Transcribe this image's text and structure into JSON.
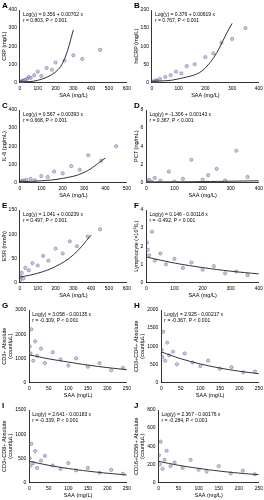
{
  "chart_data": [
    {
      "type": "scatter",
      "title": "A",
      "x_label": "SAA (mg/L)",
      "y_label": "CRP (mg/L)",
      "annotations": [
        "Log(y) = 0.356 + 0.00702 x",
        "r = 0.803, P < 0.001"
      ],
      "xlim": [
        0,
        600
      ],
      "xticks": [
        0,
        100,
        200,
        300,
        400,
        500,
        600
      ],
      "ylim": [
        0,
        400
      ],
      "yticks": [
        0,
        100,
        200,
        300,
        400
      ],
      "grid": false,
      "color": "#7e6aa8",
      "marker": "circle",
      "x": [
        2,
        5,
        8,
        10,
        15,
        20,
        30,
        40,
        50,
        60,
        80,
        100,
        120,
        150,
        180,
        200,
        250,
        300,
        350,
        450
      ],
      "values": [
        1,
        3,
        5,
        2,
        10,
        8,
        15,
        20,
        30,
        25,
        40,
        60,
        35,
        80,
        70,
        110,
        120,
        150,
        130,
        180
      ],
      "fit": {
        "x": [
          0,
          100,
          200,
          250,
          300
        ],
        "values": [
          2.3,
          11.5,
          58,
          129,
          290
        ],
        "color": "#333333",
        "line_style": "solid"
      }
    },
    {
      "type": "scatter",
      "title": "B",
      "x_label": "SAA (mg/L)",
      "y_label": "hsCRP (mg/L)",
      "annotations": [
        "Log(y) = 0.376 + 0.00619 x",
        "r = 0.767, P < 0.001"
      ],
      "xlim": [
        0,
        400
      ],
      "xticks": [
        0,
        100,
        200,
        300,
        400
      ],
      "ylim": [
        0,
        200
      ],
      "yticks": [
        0,
        50,
        100,
        150,
        200
      ],
      "grid": false,
      "color": "#7e6aa8",
      "marker": "circle",
      "x": [
        2,
        5,
        10,
        15,
        20,
        30,
        50,
        70,
        90,
        110,
        130,
        160,
        200,
        230,
        260,
        300,
        350
      ],
      "values": [
        1,
        3,
        2,
        6,
        5,
        10,
        15,
        20,
        30,
        25,
        45,
        50,
        70,
        80,
        110,
        120,
        150
      ],
      "fit": {
        "x": [
          0,
          100,
          200,
          300
        ],
        "values": [
          2.4,
          9.8,
          40,
          163
        ],
        "color": "#333333",
        "line_style": "solid"
      }
    },
    {
      "type": "scatter",
      "title": "C",
      "x_label": "SAA (mg/L)",
      "y_label": "IL-6 (pg/mL)",
      "annotations": [
        "Log(y) = 0.567 + 0.00393 x",
        "r = 0.668, P < 0.001"
      ],
      "xlim": [
        0,
        500
      ],
      "xticks": [
        0,
        100,
        200,
        300,
        400,
        500
      ],
      "ylim": [
        0,
        400
      ],
      "yticks": [
        0,
        100,
        200,
        300,
        400
      ],
      "grid": false,
      "color": "#7e6aa8",
      "marker": "circle",
      "x": [
        3,
        8,
        12,
        20,
        30,
        50,
        70,
        100,
        130,
        160,
        200,
        240,
        280,
        320,
        380,
        450
      ],
      "values": [
        5,
        2,
        10,
        8,
        15,
        20,
        12,
        35,
        30,
        60,
        50,
        90,
        70,
        150,
        120,
        200
      ],
      "fit": {
        "x": [
          0,
          100,
          200,
          300,
          400
        ],
        "values": [
          3.7,
          9.1,
          22.2,
          55,
          135
        ],
        "color": "#333333",
        "line_style": "solid"
      }
    },
    {
      "type": "scatter",
      "title": "D",
      "x_label": "SAA (mg/L)",
      "y_label": "PCT (ng/mL)",
      "annotations": [
        "Log(y) = -1.306 + 0.00143 x",
        "r = 0.367, P < 0.001"
      ],
      "xlim": [
        0,
        400
      ],
      "xticks": [
        0,
        100,
        200,
        300,
        400
      ],
      "ylim": [
        0,
        8
      ],
      "yticks": [
        0,
        2,
        4,
        6,
        8
      ],
      "grid": false,
      "color": "#7e6aa8",
      "marker": "circle",
      "x": [
        2,
        5,
        10,
        20,
        30,
        50,
        80,
        100,
        130,
        160,
        200,
        220,
        250,
        280,
        320,
        360
      ],
      "values": [
        0.05,
        0.1,
        0.3,
        0.05,
        0.5,
        0.2,
        1.2,
        0.1,
        0.4,
        2.5,
        0.3,
        0.8,
        1.5,
        0.2,
        3.5,
        0.6
      ],
      "fit": {
        "x": [
          0,
          200,
          400
        ],
        "values": [
          0.05,
          0.09,
          0.18
        ],
        "color": "#333333",
        "line_style": "solid"
      }
    },
    {
      "type": "scatter",
      "title": "E",
      "x_label": "SAA (mg/L)",
      "y_label": "ESR (mm/h)",
      "annotations": [
        "Log(y) = 1.041 + 0.00239 x",
        "r = 0.497, P < 0.001"
      ],
      "xlim": [
        0,
        600
      ],
      "xticks": [
        0,
        100,
        200,
        300,
        400,
        500,
        600
      ],
      "ylim": [
        0,
        150
      ],
      "yticks": [
        0,
        50,
        100,
        150
      ],
      "grid": false,
      "color": "#7e6aa8",
      "marker": "circle",
      "x": [
        2,
        5,
        10,
        20,
        30,
        50,
        70,
        100,
        130,
        160,
        200,
        240,
        280,
        320,
        380,
        450
      ],
      "values": [
        5,
        12,
        20,
        8,
        30,
        25,
        40,
        35,
        55,
        45,
        70,
        60,
        85,
        75,
        95,
        110
      ],
      "fit": {
        "x": [
          0,
          100,
          200,
          300,
          400
        ],
        "values": [
          11,
          19,
          33,
          57,
          98
        ],
        "color": "#333333",
        "line_style": "solid"
      }
    },
    {
      "type": "scatter",
      "title": "F",
      "x_label": "SAA (mg/L)",
      "y_label": "Lymphocyte (×10⁹/L)",
      "annotations": [
        "Log(y) = 0.146 - 0.00118 x",
        "r = -0.492, P < 0.001"
      ],
      "xlim": [
        0,
        400
      ],
      "xticks": [
        0,
        100,
        200,
        300,
        400
      ],
      "ylim": [
        0,
        4
      ],
      "yticks": [
        0,
        1,
        2,
        3,
        4
      ],
      "grid": false,
      "color": "#7e6aa8",
      "marker": "circle",
      "x": [
        2,
        5,
        10,
        20,
        30,
        50,
        70,
        100,
        130,
        160,
        200,
        240,
        280,
        320,
        360
      ],
      "values": [
        2.2,
        1.8,
        1.5,
        2.8,
        1.2,
        1.6,
        1.0,
        1.3,
        0.8,
        1.1,
        0.7,
        0.9,
        0.5,
        0.6,
        0.4
      ],
      "fit": {
        "x": [
          0,
          100,
          200,
          300,
          400
        ],
        "values": [
          1.4,
          1.07,
          0.82,
          0.62,
          0.47
        ],
        "color": "#333333",
        "line_style": "solid"
      }
    },
    {
      "type": "scatter",
      "title": "G",
      "x_label": "SAA (mg/L)",
      "y_label": "CD3+ Absolute (count/μL)",
      "annotations": [
        "Log(y) = 3.058 - 0.00135 x",
        "r = -0.309, P < 0.001"
      ],
      "xlim": [
        0,
        250
      ],
      "xticks": [
        0,
        50,
        100,
        150,
        200,
        250
      ],
      "ylim": [
        0,
        3000
      ],
      "yticks": [
        0,
        1000,
        2000,
        3000
      ],
      "grid": false,
      "color": "#7e6aa8",
      "marker": "circle",
      "x": [
        1,
        3,
        5,
        10,
        15,
        20,
        30,
        40,
        60,
        80,
        100,
        120,
        150,
        180,
        210,
        240
      ],
      "values": [
        1500,
        1200,
        2200,
        900,
        1700,
        1100,
        1400,
        800,
        1250,
        950,
        700,
        1000,
        650,
        800,
        500,
        600
      ],
      "fit": {
        "x": [
          0,
          50,
          100,
          150,
          200,
          250
        ],
        "values": [
          1143,
          976,
          843,
          717,
          614,
          525
        ],
        "color": "#333333",
        "line_style": "solid"
      }
    },
    {
      "type": "scatter",
      "title": "H",
      "x_label": "SAA (mg/L)",
      "y_label": "CD3+CD4+ Absolute (count/μL)",
      "annotations": [
        "Log(y) = 2.925 - 0.00217 x",
        "r = -0.367, P < 0.001"
      ],
      "xlim": [
        0,
        250
      ],
      "xticks": [
        0,
        50,
        100,
        150,
        200,
        250
      ],
      "ylim": [
        0,
        2000
      ],
      "yticks": [
        0,
        500,
        1000,
        1500,
        2000
      ],
      "grid": false,
      "color": "#7e6aa8",
      "marker": "circle",
      "x": [
        1,
        3,
        5,
        10,
        15,
        20,
        30,
        40,
        60,
        80,
        100,
        120,
        150,
        180,
        210,
        240
      ],
      "values": [
        900,
        700,
        1400,
        600,
        1100,
        750,
        850,
        500,
        800,
        550,
        450,
        600,
        380,
        420,
        280,
        300
      ],
      "fit": {
        "x": [
          0,
          50,
          100,
          150,
          200,
          250
        ],
        "values": [
          841,
          655,
          510,
          397,
          309,
          241
        ],
        "color": "#333333",
        "line_style": "solid"
      }
    },
    {
      "type": "scatter",
      "title": "I",
      "x_label": "SAA (mg/L)",
      "y_label": "CD3+CD8+ Absolute (count/μL)",
      "annotations": [
        "Log(y) = 2.641 - 0.00183 x",
        "r = -0.339, P < 0.001"
      ],
      "xlim": [
        0,
        250
      ],
      "xticks": [
        0,
        50,
        100,
        150,
        200,
        250
      ],
      "ylim": [
        0,
        1500
      ],
      "yticks": [
        0,
        500,
        1000,
        1500
      ],
      "grid": false,
      "color": "#7e6aa8",
      "marker": "circle",
      "x": [
        1,
        3,
        5,
        10,
        15,
        20,
        30,
        40,
        60,
        80,
        100,
        120,
        150,
        180,
        210,
        240
      ],
      "values": [
        500,
        350,
        800,
        400,
        650,
        300,
        450,
        550,
        350,
        280,
        400,
        250,
        300,
        200,
        260,
        180
      ],
      "fit": {
        "x": [
          0,
          50,
          100,
          150,
          200,
          250
        ],
        "values": [
          438,
          354,
          288,
          234,
          190,
          154
        ],
        "color": "#333333",
        "line_style": "solid"
      }
    },
    {
      "type": "scatter",
      "title": "J",
      "x_label": "SAA (mg/L)",
      "y_label": "CD16+CD56+ Absolute (count/μL)",
      "annotations": [
        "Log(y) = 2.367 - 0.00176 x",
        "r = -0.284, P < 0.001"
      ],
      "xlim": [
        0,
        250
      ],
      "xticks": [
        0,
        50,
        100,
        150,
        200,
        250
      ],
      "ylim": [
        0,
        800
      ],
      "yticks": [
        0,
        200,
        400,
        600,
        800
      ],
      "grid": false,
      "color": "#7e6aa8",
      "marker": "circle",
      "x": [
        1,
        3,
        5,
        10,
        15,
        20,
        30,
        40,
        60,
        80,
        100,
        120,
        150,
        180,
        210,
        240
      ],
      "values": [
        300,
        200,
        450,
        150,
        250,
        350,
        180,
        220,
        160,
        250,
        140,
        120,
        180,
        100,
        130,
        90
      ],
      "fit": {
        "x": [
          0,
          50,
          100,
          150,
          200,
          250
        ],
        "values": [
          233,
          189,
          155,
          126,
          103,
          85
        ],
        "color": "#333333",
        "line_style": "solid"
      }
    }
  ]
}
